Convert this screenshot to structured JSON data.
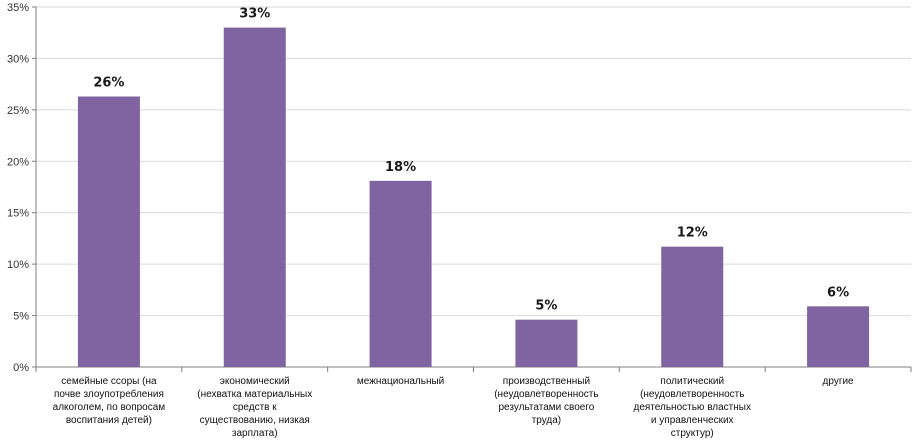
{
  "chart_data": {
    "type": "bar",
    "categories": [
      [
        "семейные ссоры (на",
        "почве злоупотребления",
        "алкоголем, по вопросам",
        "воспитания детей)"
      ],
      [
        "экономический",
        "(нехватка материальных",
        "средств к",
        "существованию, низкая",
        "зарплата)"
      ],
      [
        "межнациональный"
      ],
      [
        "производственный",
        "(неудовлетворенность",
        "результатами своего",
        "труда)"
      ],
      [
        "политический",
        "(неудовлетворенность",
        "деятельностью властных",
        "и управленческих",
        "структур)"
      ],
      [
        "другие"
      ]
    ],
    "values": [
      26.3,
      33.0,
      18.1,
      4.6,
      11.7,
      5.9
    ],
    "data_labels": [
      "26%",
      "33%",
      "18%",
      "5%",
      "12%",
      "6%"
    ],
    "y_ticks": [
      "0%",
      "5%",
      "10%",
      "15%",
      "20%",
      "25%",
      "30%",
      "35%"
    ],
    "ylim": [
      0,
      35
    ],
    "y_step": 5,
    "grid": true,
    "bar_color": "#8064a2",
    "grid_color": "#d9d9d9",
    "axis_color": "#7f7f7f",
    "title": "",
    "xlabel": "",
    "ylabel": "",
    "legend": "none"
  }
}
